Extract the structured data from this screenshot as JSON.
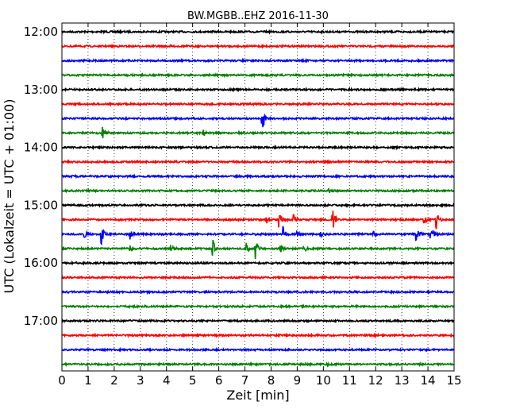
{
  "chart_data": {
    "type": "line",
    "title": "BW.MGBB..EHZ 2016-11-30",
    "xlabel": "Zeit  [min]",
    "ylabel": "UTC (Lokalzeit = UTC + 01:00)",
    "xlim": [
      0,
      15
    ],
    "x_ticks": [
      0,
      1,
      2,
      3,
      4,
      5,
      6,
      7,
      8,
      9,
      10,
      11,
      12,
      13,
      14,
      15
    ],
    "x_tick_labels": [
      "0",
      "1",
      "2",
      "3",
      "4",
      "5",
      "6",
      "7",
      "8",
      "9",
      "10",
      "11",
      "12",
      "13",
      "14",
      "15"
    ],
    "y_tick_labels": [
      "12:00",
      "13:00",
      "14:00",
      "15:00",
      "16:00",
      "17:00"
    ],
    "grid": "vertical dotted",
    "trace_colors": [
      "#000000",
      "#ff0000",
      "#0000ff",
      "#008000"
    ],
    "traces": [
      {
        "start": "12:00",
        "events": []
      },
      {
        "start": "12:15",
        "events": []
      },
      {
        "start": "12:30",
        "events": [
          {
            "t": 9.2,
            "amp": 0.3
          }
        ]
      },
      {
        "start": "12:45",
        "events": []
      },
      {
        "start": "13:00",
        "events": []
      },
      {
        "start": "13:15",
        "events": []
      },
      {
        "start": "13:30",
        "events": [
          {
            "t": 7.65,
            "amp": 1.9
          }
        ]
      },
      {
        "start": "13:45",
        "events": [
          {
            "t": 1.55,
            "amp": 0.9
          },
          {
            "t": 5.4,
            "amp": 0.5
          }
        ]
      },
      {
        "start": "14:00",
        "events": []
      },
      {
        "start": "14:15",
        "events": []
      },
      {
        "start": "14:30",
        "events": []
      },
      {
        "start": "14:45",
        "events": [
          {
            "t": 10.2,
            "amp": 0.4
          }
        ]
      },
      {
        "start": "15:00",
        "events": []
      },
      {
        "start": "15:15",
        "events": [
          {
            "t": 7.8,
            "amp": 0.5
          },
          {
            "t": 8.3,
            "amp": 1.4
          },
          {
            "t": 8.85,
            "amp": 0.6
          },
          {
            "t": 10.35,
            "amp": 1.4
          },
          {
            "t": 13.85,
            "amp": 0.6
          },
          {
            "t": 14.3,
            "amp": 1.2
          }
        ]
      },
      {
        "start": "15:30",
        "events": [
          {
            "t": 0.85,
            "amp": 0.5
          },
          {
            "t": 1.5,
            "amp": 1.2
          },
          {
            "t": 2.6,
            "amp": 0.6
          },
          {
            "t": 8.45,
            "amp": 0.8
          },
          {
            "t": 9.0,
            "amp": 0.7
          },
          {
            "t": 9.85,
            "amp": 0.6
          },
          {
            "t": 11.9,
            "amp": 0.6
          },
          {
            "t": 13.55,
            "amp": 1.3
          },
          {
            "t": 14.1,
            "amp": 1.2
          }
        ]
      },
      {
        "start": "15:45",
        "events": [
          {
            "t": 2.6,
            "amp": 0.6
          },
          {
            "t": 4.15,
            "amp": 0.7
          },
          {
            "t": 5.75,
            "amp": 1.3
          },
          {
            "t": 7.05,
            "amp": 0.6
          },
          {
            "t": 7.4,
            "amp": 1.2
          },
          {
            "t": 8.35,
            "amp": 0.6
          },
          {
            "t": 9.25,
            "amp": 0.5
          }
        ]
      },
      {
        "start": "16:00",
        "events": []
      },
      {
        "start": "16:15",
        "events": []
      },
      {
        "start": "16:30",
        "events": []
      },
      {
        "start": "16:45",
        "events": []
      },
      {
        "start": "17:00",
        "events": []
      },
      {
        "start": "17:15",
        "events": []
      },
      {
        "start": "17:30",
        "events": []
      },
      {
        "start": "17:45",
        "events": [
          {
            "t": 10.1,
            "amp": 0.3
          }
        ]
      }
    ]
  }
}
